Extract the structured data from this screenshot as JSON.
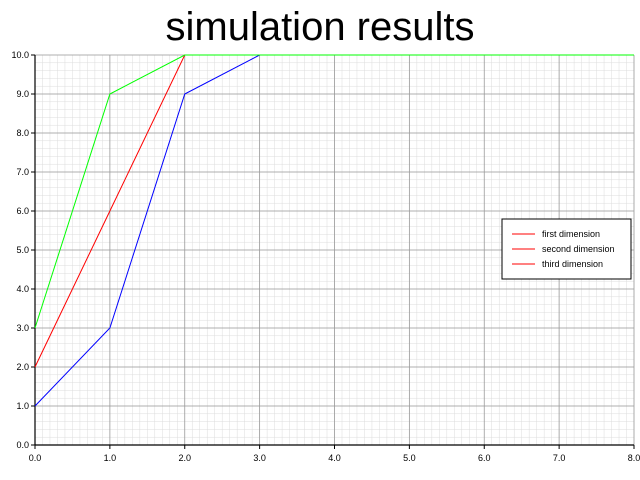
{
  "chart_data": {
    "type": "line",
    "title": "simulation results",
    "xlabel": "",
    "ylabel": "",
    "xlim": [
      0,
      8
    ],
    "ylim": [
      0,
      10
    ],
    "grid": true,
    "minor_grid": true,
    "x_ticks": [
      "0.0",
      "1.0",
      "2.0",
      "3.0",
      "4.0",
      "5.0",
      "6.0",
      "7.0",
      "8.0"
    ],
    "y_ticks": [
      "0.0",
      "1.0",
      "2.0",
      "3.0",
      "4.0",
      "5.0",
      "6.0",
      "7.0",
      "8.0",
      "9.0",
      "10.0"
    ],
    "legend_position": "right",
    "legend": [
      {
        "label": "first dimension",
        "color": "#ff0000"
      },
      {
        "label": "second dimension",
        "color": "#ff0000"
      },
      {
        "label": "third dimension",
        "color": "#ff0000"
      }
    ],
    "series": [
      {
        "color": "#0000ff",
        "x": [
          0,
          1,
          2,
          3,
          4,
          5,
          6,
          7,
          8
        ],
        "y": [
          1,
          3,
          9,
          10,
          10,
          10,
          10,
          10,
          10
        ]
      },
      {
        "color": "#ff0000",
        "x": [
          0,
          1,
          2,
          3,
          4,
          5,
          6,
          7,
          8
        ],
        "y": [
          2,
          6,
          10,
          10,
          10,
          10,
          10,
          10,
          10
        ]
      },
      {
        "color": "#00ff00",
        "x": [
          0,
          1,
          2,
          3,
          4,
          5,
          6,
          7,
          8
        ],
        "y": [
          3,
          9,
          10,
          10,
          10,
          10,
          10,
          10,
          10
        ]
      }
    ]
  }
}
